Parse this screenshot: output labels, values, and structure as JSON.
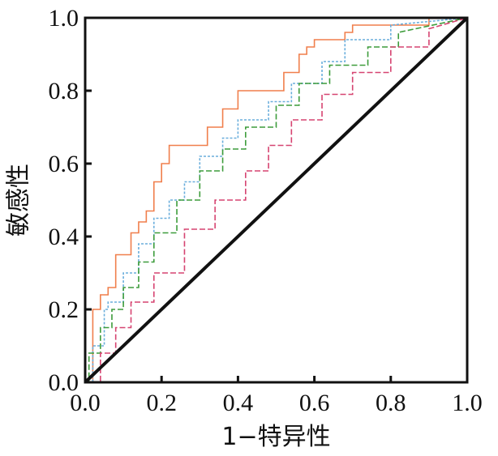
{
  "chart_data": {
    "type": "line",
    "title": "",
    "xlabel": "1−特异性",
    "ylabel": "敏感性",
    "xlim": [
      0.0,
      1.0
    ],
    "ylim": [
      0.0,
      1.0
    ],
    "xticks": [
      "0.0",
      "0.2",
      "0.4",
      "0.6",
      "0.8",
      "1.0"
    ],
    "yticks": [
      "0.0",
      "0.2",
      "0.4",
      "0.6",
      "0.8",
      "1.0"
    ],
    "grid": false,
    "legend": "none",
    "reference_line": {
      "x": [
        0.0,
        1.0
      ],
      "y": [
        0.0,
        1.0
      ],
      "color": "#111111"
    },
    "series": [
      {
        "color": "#f07f4c",
        "style": "solid",
        "x": [
          0.0,
          0.02,
          0.02,
          0.04,
          0.04,
          0.06,
          0.06,
          0.08,
          0.08,
          0.12,
          0.12,
          0.14,
          0.14,
          0.16,
          0.16,
          0.18,
          0.18,
          0.2,
          0.2,
          0.22,
          0.22,
          0.32,
          0.32,
          0.36,
          0.36,
          0.4,
          0.4,
          0.52,
          0.52,
          0.56,
          0.56,
          0.58,
          0.58,
          0.6,
          0.6,
          0.68,
          0.68,
          0.7,
          0.7,
          0.9,
          0.9,
          1.0
        ],
        "y": [
          0.0,
          0.0,
          0.2,
          0.2,
          0.24,
          0.24,
          0.26,
          0.26,
          0.35,
          0.35,
          0.41,
          0.41,
          0.44,
          0.44,
          0.47,
          0.47,
          0.55,
          0.55,
          0.6,
          0.6,
          0.65,
          0.65,
          0.7,
          0.7,
          0.75,
          0.75,
          0.8,
          0.8,
          0.85,
          0.85,
          0.9,
          0.9,
          0.92,
          0.92,
          0.94,
          0.94,
          0.96,
          0.96,
          0.98,
          0.98,
          1.0,
          1.0
        ]
      },
      {
        "color": "#6aaedc",
        "style": "dotted",
        "x": [
          0.0,
          0.02,
          0.02,
          0.05,
          0.05,
          0.06,
          0.06,
          0.1,
          0.1,
          0.14,
          0.14,
          0.18,
          0.18,
          0.22,
          0.22,
          0.26,
          0.26,
          0.3,
          0.3,
          0.36,
          0.36,
          0.4,
          0.4,
          0.48,
          0.48,
          0.54,
          0.54,
          0.62,
          0.62,
          0.68,
          0.68,
          0.8,
          0.8,
          1.0
        ],
        "y": [
          0.0,
          0.0,
          0.1,
          0.1,
          0.2,
          0.2,
          0.22,
          0.22,
          0.3,
          0.3,
          0.38,
          0.38,
          0.45,
          0.45,
          0.5,
          0.5,
          0.55,
          0.55,
          0.62,
          0.62,
          0.67,
          0.67,
          0.72,
          0.72,
          0.77,
          0.77,
          0.82,
          0.82,
          0.88,
          0.88,
          0.94,
          0.94,
          0.98,
          1.0
        ]
      },
      {
        "color": "#3d9c3b",
        "style": "dashed",
        "x": [
          0.0,
          0.01,
          0.01,
          0.04,
          0.04,
          0.07,
          0.07,
          0.1,
          0.1,
          0.14,
          0.14,
          0.18,
          0.18,
          0.24,
          0.24,
          0.3,
          0.3,
          0.36,
          0.36,
          0.42,
          0.42,
          0.5,
          0.5,
          0.56,
          0.56,
          0.64,
          0.64,
          0.74,
          0.74,
          0.82,
          0.82,
          1.0
        ],
        "y": [
          0.0,
          0.0,
          0.08,
          0.08,
          0.15,
          0.15,
          0.2,
          0.2,
          0.26,
          0.26,
          0.33,
          0.33,
          0.41,
          0.41,
          0.5,
          0.5,
          0.58,
          0.58,
          0.64,
          0.64,
          0.7,
          0.7,
          0.76,
          0.76,
          0.82,
          0.82,
          0.87,
          0.87,
          0.92,
          0.92,
          0.96,
          1.0
        ]
      },
      {
        "color": "#d64471",
        "style": "dashed",
        "x": [
          0.0,
          0.04,
          0.04,
          0.08,
          0.08,
          0.12,
          0.12,
          0.18,
          0.18,
          0.26,
          0.26,
          0.34,
          0.34,
          0.42,
          0.42,
          0.48,
          0.48,
          0.54,
          0.54,
          0.62,
          0.62,
          0.7,
          0.7,
          0.8,
          0.8,
          0.9,
          0.9,
          1.0
        ],
        "y": [
          0.0,
          0.0,
          0.08,
          0.08,
          0.15,
          0.15,
          0.22,
          0.22,
          0.3,
          0.3,
          0.42,
          0.42,
          0.5,
          0.5,
          0.58,
          0.58,
          0.65,
          0.65,
          0.72,
          0.72,
          0.79,
          0.79,
          0.85,
          0.85,
          0.92,
          0.92,
          0.97,
          1.0
        ]
      }
    ]
  }
}
